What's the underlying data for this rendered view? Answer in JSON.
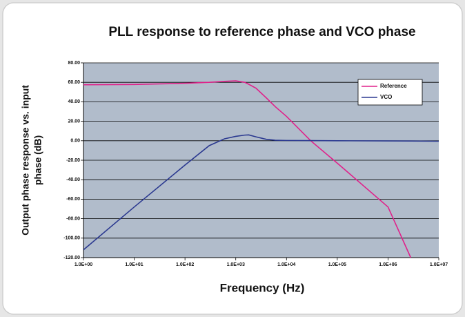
{
  "chart_data": {
    "type": "line",
    "title": "PLL response to reference phase and VCO phase",
    "xlabel": "Frequency (Hz)",
    "ylabel": [
      "Output phase response vs. input",
      "phase (dB)"
    ],
    "x": [
      1,
      10,
      100,
      300,
      600,
      1000,
      1500,
      1800,
      2500,
      4000,
      6000,
      10000,
      30000,
      100000,
      1000000,
      2800000,
      10000000
    ],
    "series": [
      {
        "name": "Reference",
        "color": "#e0218a",
        "values": [
          57.5,
          57.8,
          59,
          60,
          61,
          61.5,
          60,
          58,
          54,
          44,
          35,
          25,
          0,
          -23,
          -68,
          -120,
          null
        ]
      },
      {
        "name": "VCO",
        "color": "#2b3990",
        "values": [
          -112,
          -68,
          -25,
          -5,
          2,
          4.5,
          5.8,
          6,
          4,
          1.5,
          0.5,
          0.3,
          0.2,
          0,
          -0.2,
          -0.3,
          -0.5
        ]
      }
    ],
    "xscale": "log",
    "xlim": [
      1,
      10000000
    ],
    "xticks": [
      {
        "value": 1,
        "label": "1.0E+00"
      },
      {
        "value": 10,
        "label": "1.0E+01"
      },
      {
        "value": 100,
        "label": "1.0E+02"
      },
      {
        "value": 1000,
        "label": "1.0E+03"
      },
      {
        "value": 10000,
        "label": "1.0E+04"
      },
      {
        "value": 100000,
        "label": "1.0E+05"
      },
      {
        "value": 1000000,
        "label": "1.0E+06"
      },
      {
        "value": 10000000,
        "label": "1.0E+07"
      }
    ],
    "ylim": [
      -120,
      80
    ],
    "yticks": [
      {
        "value": -120,
        "label": "-120.00"
      },
      {
        "value": -100,
        "label": "-100.00"
      },
      {
        "value": -80,
        "label": "-80.00"
      },
      {
        "value": -60,
        "label": "-60.00"
      },
      {
        "value": -40,
        "label": "-40.00"
      },
      {
        "value": -20,
        "label": "-20.00"
      },
      {
        "value": 0,
        "label": "0.00"
      },
      {
        "value": 20,
        "label": "20.00"
      },
      {
        "value": 40,
        "label": "40.00"
      },
      {
        "value": 60,
        "label": "60.00"
      },
      {
        "value": 80,
        "label": "80.00"
      }
    ],
    "grid": true,
    "legend": "upper right",
    "plot_background": "#b1bccb"
  }
}
